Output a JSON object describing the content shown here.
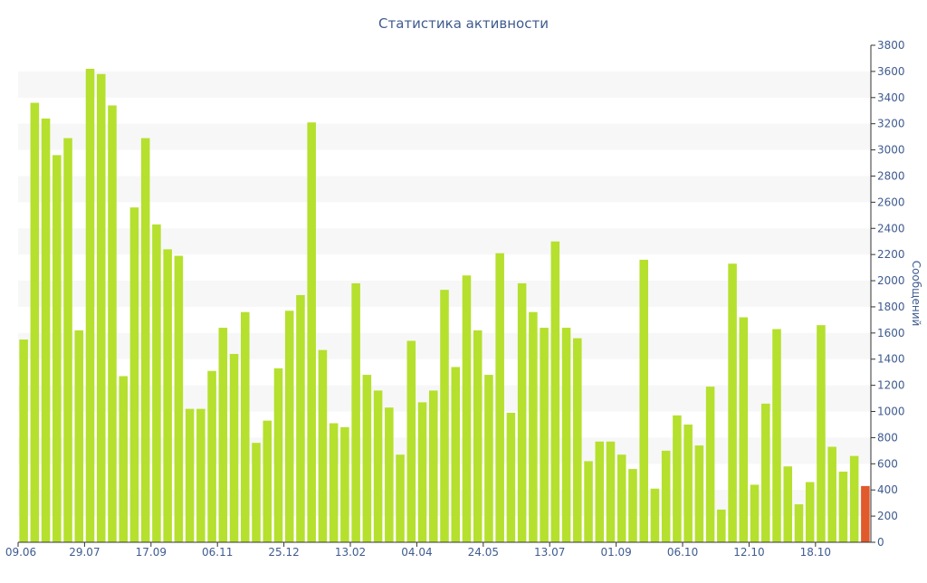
{
  "chart_data": {
    "type": "bar",
    "title": "Статистика активности",
    "ylabel": "Сообщений",
    "xlabel": "",
    "ylim": [
      0,
      3800
    ],
    "ytick_step": 200,
    "y_axis_side": "right",
    "grid": "alternating horizontal bands",
    "legend": "none",
    "colors": {
      "bar": "#b5e02e",
      "current": "#e05a2b",
      "band": "#f7f7f7",
      "text": "#3f5b8f",
      "axis": "#333333"
    },
    "x_tick_labels": [
      {
        "index": 0,
        "label": "09.06"
      },
      {
        "index": 6,
        "label": "29.07"
      },
      {
        "index": 12,
        "label": "17.09"
      },
      {
        "index": 18,
        "label": "06.11"
      },
      {
        "index": 24,
        "label": "25.12"
      },
      {
        "index": 30,
        "label": "13.02"
      },
      {
        "index": 36,
        "label": "04.04"
      },
      {
        "index": 42,
        "label": "24.05"
      },
      {
        "index": 48,
        "label": "13.07"
      },
      {
        "index": 54,
        "label": "01.09"
      },
      {
        "index": 60,
        "label": "06.10"
      },
      {
        "index": 66,
        "label": "12.10"
      },
      {
        "index": 72,
        "label": "18.10"
      }
    ],
    "values": [
      1550,
      3360,
      3240,
      2960,
      3090,
      1620,
      3620,
      3580,
      3340,
      1270,
      2560,
      3090,
      2430,
      2240,
      2190,
      1020,
      1020,
      1310,
      1640,
      1440,
      1760,
      760,
      930,
      1330,
      1770,
      1890,
      3210,
      1470,
      910,
      880,
      1980,
      1280,
      1160,
      1030,
      670,
      1540,
      1070,
      1160,
      1930,
      1340,
      2040,
      1620,
      1280,
      2210,
      990,
      1980,
      1760,
      1640,
      2300,
      1640,
      1560,
      620,
      770,
      770,
      670,
      560,
      2160,
      410,
      700,
      970,
      900,
      740,
      1190,
      250,
      2130,
      1720,
      440,
      1060,
      1630,
      580,
      290,
      460,
      1660,
      730,
      540,
      660,
      430
    ],
    "highlight_last": true
  }
}
